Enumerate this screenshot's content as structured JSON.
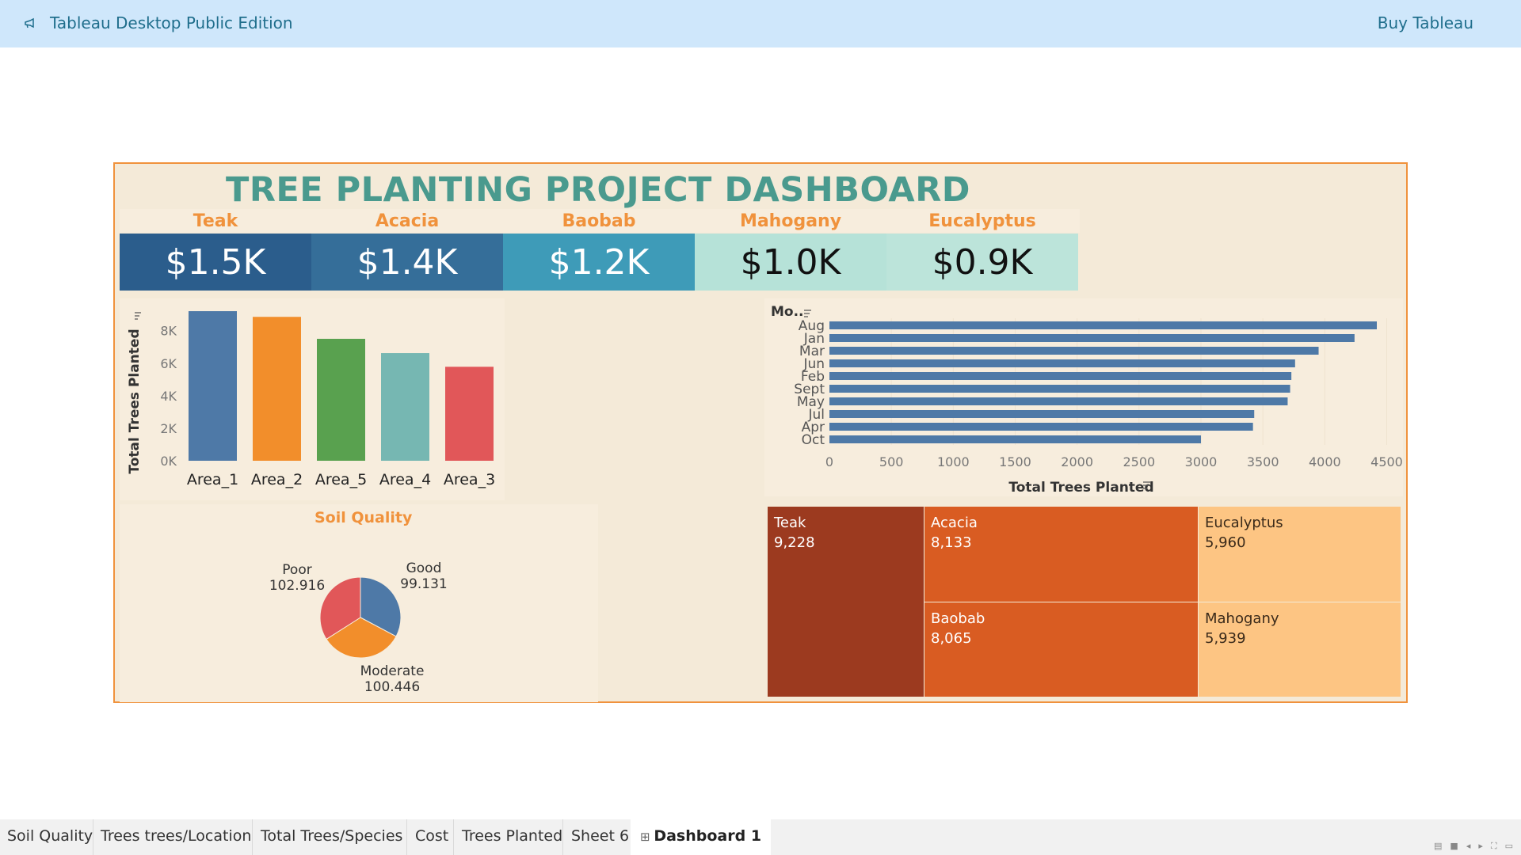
{
  "app": {
    "title": "Tableau Desktop Public Edition",
    "buy_label": "Buy Tableau"
  },
  "dashboard": {
    "title": "TREE PLANTING PROJECT DASHBOARD",
    "kpis": [
      {
        "label": "Teak",
        "value": "$1.5K",
        "bg": "#2b5d8c",
        "fg": "#ffffff"
      },
      {
        "label": "Acacia",
        "value": "$1.4K",
        "bg": "#356e99",
        "fg": "#ffffff"
      },
      {
        "label": "Baobab",
        "value": "$1.2K",
        "bg": "#3e9bb8",
        "fg": "#ffffff"
      },
      {
        "label": "Mahogany",
        "value": "$1.0K",
        "bg": "#b6e2d8",
        "fg": "#111111"
      },
      {
        "label": "Eucalyptus",
        "value": "$0.9K",
        "bg": "#bce4da",
        "fg": "#111111"
      }
    ],
    "area_chart": {
      "chart_data": {
        "type": "bar",
        "categories": [
          "Area_1",
          "Area_2",
          "Area_5",
          "Area_4",
          "Area_3"
        ],
        "values": [
          9200,
          8850,
          7500,
          6620,
          5780
        ],
        "colors": [
          "#4e79a7",
          "#f28e2b",
          "#59a14f",
          "#76b7b2",
          "#e15759"
        ],
        "ylabel": "Total Trees Planted",
        "yticks": [
          "0K",
          "2K",
          "4K",
          "6K",
          "8K"
        ],
        "ytick_values": [
          0,
          2000,
          4000,
          6000,
          8000
        ],
        "ylim": [
          0,
          9300
        ]
      }
    },
    "month_chart": {
      "chart_data": {
        "type": "bar",
        "orientation": "horizontal",
        "header": "Mo..",
        "categories": [
          "Aug",
          "Jan",
          "Mar",
          "Jun",
          "Feb",
          "Sept",
          "May",
          "Jul",
          "Apr",
          "Oct"
        ],
        "values": [
          4420,
          4240,
          3950,
          3760,
          3730,
          3720,
          3700,
          3430,
          3420,
          3000
        ],
        "color": "#4e79a7",
        "xlabel": "Total Trees Planted",
        "xticks": [
          "0",
          "500",
          "1000",
          "1500",
          "2000",
          "2500",
          "3000",
          "3500",
          "4000",
          "4500"
        ],
        "xtick_values": [
          0,
          500,
          1000,
          1500,
          2000,
          2500,
          3000,
          3500,
          4000,
          4500
        ],
        "xlim": [
          0,
          4550
        ]
      }
    },
    "soil_chart": {
      "title": "Soil Quality",
      "chart_data": {
        "type": "pie",
        "slices": [
          {
            "label": "Good",
            "value": 99.131,
            "display": "99.131",
            "color": "#4e79a7"
          },
          {
            "label": "Moderate",
            "value": 100.446,
            "display": "100.446",
            "color": "#f28e2b"
          },
          {
            "label": "Poor",
            "value": 102.916,
            "display": "102.916",
            "color": "#e15759"
          }
        ]
      }
    },
    "species_treemap": {
      "chart_data": {
        "type": "treemap",
        "items": [
          {
            "name": "Teak",
            "value": "9,228",
            "bg": "#9c3a1f",
            "fg": "#ffffff"
          },
          {
            "name": "Acacia",
            "value": "8,133",
            "bg": "#d95c22",
            "fg": "#ffffff"
          },
          {
            "name": "Baobab",
            "value": "8,065",
            "bg": "#d95c22",
            "fg": "#ffffff"
          },
          {
            "name": "Eucalyptus",
            "value": "5,960",
            "bg": "#fdc583",
            "fg": "#3a2a1a"
          },
          {
            "name": "Mahogany",
            "value": "5,939",
            "bg": "#fdc583",
            "fg": "#3a2a1a"
          }
        ]
      }
    }
  },
  "tabs": [
    {
      "label": "Soil Quality"
    },
    {
      "label": "Trees trees/Location"
    },
    {
      "label": "Total Trees/Species"
    },
    {
      "label": "Cost"
    },
    {
      "label": "Trees Planted"
    },
    {
      "label": "Sheet 6"
    }
  ],
  "active_tab": {
    "label": "Dashboard 1"
  }
}
